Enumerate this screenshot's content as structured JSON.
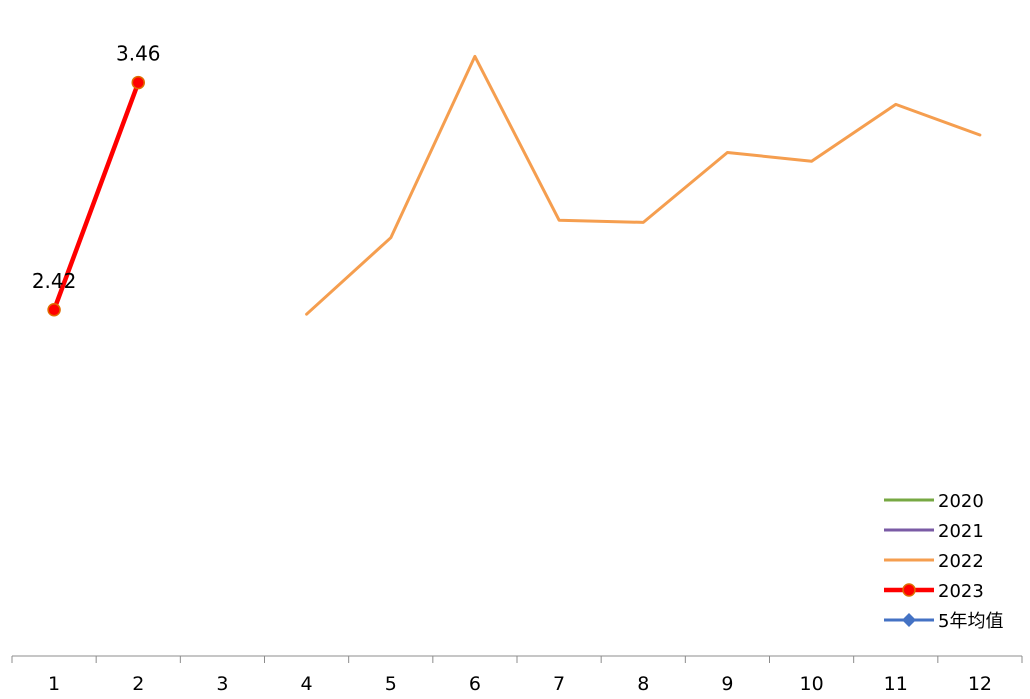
{
  "chart_data": {
    "type": "line",
    "title": "",
    "xlabel": "",
    "ylabel": "",
    "categories": [
      "1",
      "2",
      "3",
      "4",
      "5",
      "6",
      "7",
      "8",
      "9",
      "10",
      "11",
      "12"
    ],
    "ylim": [
      1.0,
      3.6
    ],
    "grid": false,
    "legend_position": "bottom-right",
    "series": [
      {
        "name": "2020",
        "color": "#77A843",
        "values": [
          null,
          null,
          null,
          null,
          null,
          null,
          null,
          null,
          null,
          null,
          null,
          null
        ]
      },
      {
        "name": "2021",
        "color": "#7A5BA5",
        "values": [
          null,
          null,
          null,
          null,
          null,
          null,
          null,
          null,
          null,
          null,
          null,
          null
        ]
      },
      {
        "name": "2022",
        "color": "#F59E4F",
        "values": [
          null,
          null,
          null,
          2.4,
          2.75,
          3.58,
          2.83,
          2.82,
          3.14,
          3.1,
          3.36,
          3.22
        ]
      },
      {
        "name": "2023",
        "color": "#FF0000",
        "marker": "circle",
        "values": [
          2.42,
          3.46,
          null,
          null,
          null,
          null,
          null,
          null,
          null,
          null,
          null,
          null
        ],
        "data_labels": [
          "2.42",
          "3.46"
        ]
      },
      {
        "name": "5年均值",
        "color": "#4472C4",
        "marker": "diamond",
        "values": [
          null,
          null,
          null,
          null,
          null,
          null,
          null,
          null,
          null,
          null,
          null,
          null
        ]
      }
    ]
  }
}
